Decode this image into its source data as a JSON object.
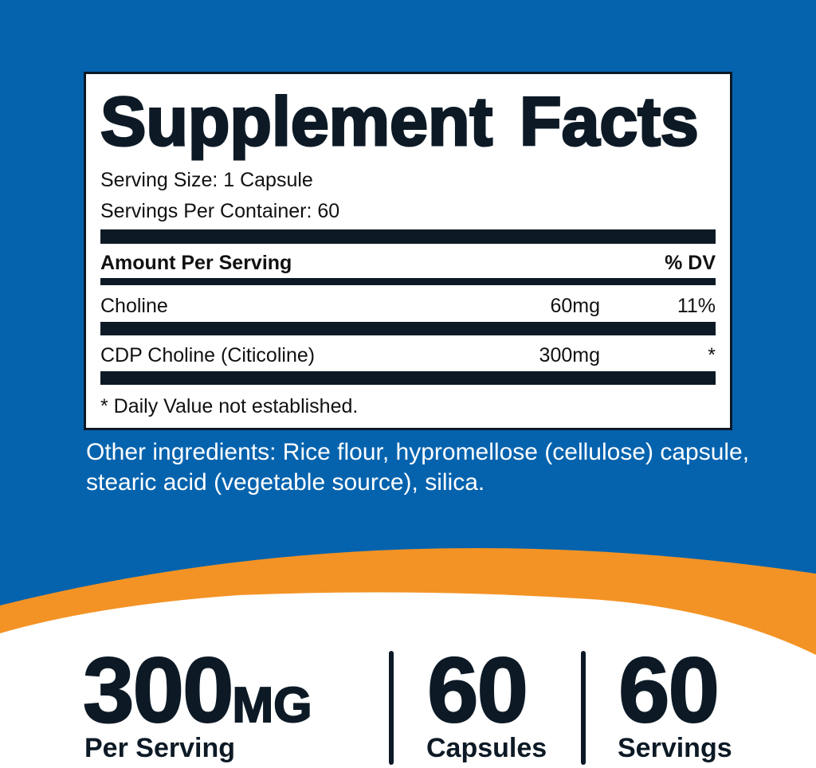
{
  "colors": {
    "background_blue": "#0563ae",
    "accent_orange": "#f39325",
    "text_dark": "#0d1a26"
  },
  "facts": {
    "title": "Supplement Facts",
    "serving_size": "Serving Size: 1 Capsule",
    "servings_per_container": "Servings Per Container: 60",
    "header": {
      "amount": "Amount Per Serving",
      "dv": "% DV"
    },
    "rows": [
      {
        "name": "Choline",
        "amount": "60mg",
        "dv": "11%"
      },
      {
        "name": "CDP Choline (Citicoline)",
        "amount": "300mg",
        "dv": "*"
      }
    ],
    "footnote": "* Daily Value not established."
  },
  "other_ingredients": "Other ingredients: Rice flour, hypromellose (cellulose) capsule, stearic acid (vegetable source), silica.",
  "stats": [
    {
      "value": "300",
      "unit": "MG",
      "label": "Per Serving"
    },
    {
      "value": "60",
      "label": "Capsules"
    },
    {
      "value": "60",
      "label": "Servings"
    }
  ]
}
